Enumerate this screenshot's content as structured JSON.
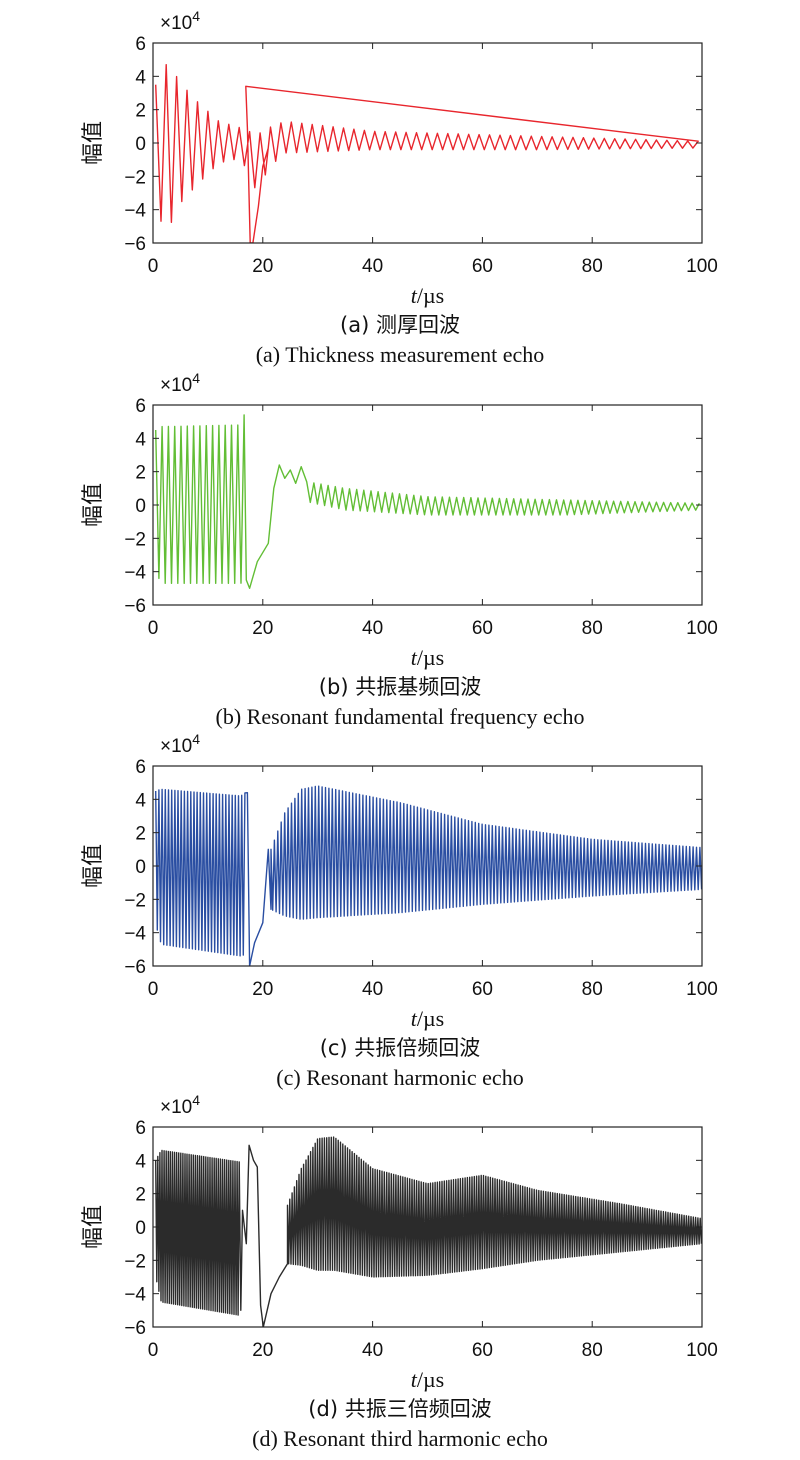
{
  "chart_data": [
    {
      "type": "line",
      "xlabel_italic": "t",
      "xlabel_unit": "/µs",
      "ylabel": "幅值",
      "multiplier": "×10",
      "multiplier_exp": "4",
      "xlim": [
        0,
        100
      ],
      "ylim": [
        -6,
        6
      ],
      "xticks": [
        "0",
        "20",
        "40",
        "60",
        "80",
        "100"
      ],
      "yticks": [
        "6",
        "4",
        "2",
        "0",
        "−2",
        "−4",
        "−6"
      ],
      "caption_zh": "(a) 测厚回波",
      "caption_en": "(a) Thickness measurement echo",
      "color": "#e8262d",
      "series": [
        {
          "envelope": [
            {
              "x": 0.5,
              "lo": -3.5,
              "hi": 3.5
            },
            {
              "x": 1.0,
              "lo": -4.6,
              "hi": 4.7
            },
            {
              "x": 3.0,
              "lo": -5.0,
              "hi": 4.7
            },
            {
              "x": 5.0,
              "lo": -3.6,
              "hi": 3.6
            },
            {
              "x": 8.0,
              "lo": -2.5,
              "hi": 2.5
            },
            {
              "x": 12.0,
              "lo": -1.2,
              "hi": 1.3
            },
            {
              "x": 16.0,
              "lo": -0.9,
              "hi": 0.9
            },
            {
              "x": 19.0,
              "lo": -3.0,
              "hi": 0.5
            },
            {
              "x": 21.0,
              "lo": -1.5,
              "hi": 0.9
            },
            {
              "x": 24.0,
              "lo": -0.6,
              "hi": 1.3
            },
            {
              "x": 40.0,
              "lo": -0.4,
              "hi": 0.7
            },
            {
              "x": 70.0,
              "lo": -0.4,
              "hi": 0.4
            },
            {
              "x": 100.0,
              "lo": -0.3,
              "hi": 0.1
            }
          ],
          "period": 1.9,
          "spikes": [
            {
              "x": 16.9,
              "y": 3.4
            },
            {
              "x": 17.2,
              "y": 0.9
            },
            {
              "x": 17.7,
              "y": -6.0
            },
            {
              "x": 18.2,
              "y": -6.0
            },
            {
              "x": 19.2,
              "y": -3.8
            },
            {
              "x": 20.0,
              "y": -1.4
            },
            {
              "x": 21.0,
              "y": -0.3
            }
          ]
        }
      ]
    },
    {
      "type": "line",
      "xlabel_italic": "t",
      "xlabel_unit": "/µs",
      "ylabel": "幅值",
      "multiplier": "×10",
      "multiplier_exp": "4",
      "xlim": [
        0,
        100
      ],
      "ylim": [
        -6,
        6
      ],
      "xticks": [
        "0",
        "20",
        "40",
        "60",
        "80",
        "100"
      ],
      "yticks": [
        "6",
        "4",
        "2",
        "0",
        "−2",
        "−4",
        "−6"
      ],
      "caption_zh": "(b) 共振基频回波",
      "caption_en": "(b) Resonant fundamental frequency echo",
      "color": "#62be35",
      "series": [
        {
          "envelope": [
            {
              "x": 0.5,
              "lo": -4.0,
              "hi": 4.5
            },
            {
              "x": 1.5,
              "lo": -4.7,
              "hi": 4.7
            },
            {
              "x": 16.0,
              "lo": -4.7,
              "hi": 4.8
            },
            {
              "x": 16.8,
              "lo": -4.5,
              "hi": 5.6
            }
          ],
          "period": 1.15,
          "spikes": [
            {
              "x": 17.0,
              "y": -4.5
            },
            {
              "x": 17.6,
              "y": -5.0
            },
            {
              "x": 19.0,
              "y": -3.4
            },
            {
              "x": 21.0,
              "y": -2.3
            },
            {
              "x": 22.0,
              "y": 1.0
            },
            {
              "x": 23.0,
              "y": 2.4
            },
            {
              "x": 24.0,
              "y": 1.6
            },
            {
              "x": 25.0,
              "y": 2.1
            },
            {
              "x": 26.0,
              "y": 1.3
            },
            {
              "x": 27.0,
              "y": 2.3
            },
            {
              "x": 28.0,
              "y": 1.4
            }
          ],
          "tail": {
            "envelope": [
              {
                "x": 28.0,
                "lo": 0.2,
                "hi": 1.4
              },
              {
                "x": 35.0,
                "lo": -0.3,
                "hi": 1.0
              },
              {
                "x": 50.0,
                "lo": -0.6,
                "hi": 0.5
              },
              {
                "x": 75.0,
                "lo": -0.6,
                "hi": 0.3
              },
              {
                "x": 100.0,
                "lo": -0.3,
                "hi": 0.1
              }
            ],
            "period": 1.3
          }
        }
      ]
    },
    {
      "type": "line",
      "xlabel_italic": "t",
      "xlabel_unit": "/µs",
      "ylabel": "幅值",
      "multiplier": "×10",
      "multiplier_exp": "4",
      "xlim": [
        0,
        100
      ],
      "ylim": [
        -6,
        6
      ],
      "xticks": [
        "0",
        "20",
        "40",
        "60",
        "80",
        "100"
      ],
      "yticks": [
        "6",
        "4",
        "2",
        "0",
        "−2",
        "−4",
        "−6"
      ],
      "caption_zh": "(c) 共振倍频回波",
      "caption_en": "(c) Resonant harmonic echo",
      "color": "#2a4ea2",
      "series": [
        {
          "envelope": [
            {
              "x": 0.5,
              "lo": -3.5,
              "hi": 4.5
            },
            {
              "x": 1.5,
              "lo": -4.7,
              "hi": 4.6
            },
            {
              "x": 16.0,
              "lo": -5.4,
              "hi": 4.2
            },
            {
              "x": 16.8,
              "lo": -5.3,
              "hi": 4.4
            }
          ],
          "period": 0.58,
          "spikes": [
            {
              "x": 17.2,
              "y": 4.4
            },
            {
              "x": 17.6,
              "y": -6.0
            },
            {
              "x": 18.5,
              "y": -4.6
            },
            {
              "x": 20.0,
              "y": -3.4
            },
            {
              "x": 21.0,
              "y": 1.0
            },
            {
              "x": 21.5,
              "y": -2.6
            }
          ],
          "tail": {
            "envelope": [
              {
                "x": 21.5,
                "lo": -2.6,
                "hi": 1.0
              },
              {
                "x": 24.0,
                "lo": -3.0,
                "hi": 3.2
              },
              {
                "x": 27.0,
                "lo": -3.2,
                "hi": 4.6
              },
              {
                "x": 30.0,
                "lo": -3.1,
                "hi": 4.8
              },
              {
                "x": 45.0,
                "lo": -2.8,
                "hi": 3.8
              },
              {
                "x": 60.0,
                "lo": -2.3,
                "hi": 2.5
              },
              {
                "x": 80.0,
                "lo": -1.8,
                "hi": 1.6
              },
              {
                "x": 100.0,
                "lo": -1.4,
                "hi": 1.1
              }
            ],
            "period": 0.62
          }
        }
      ]
    },
    {
      "type": "line",
      "xlabel_italic": "t",
      "xlabel_unit": "/µs",
      "ylabel": "幅值",
      "multiplier": "×10",
      "multiplier_exp": "4",
      "xlim": [
        0,
        100
      ],
      "ylim": [
        -6,
        6
      ],
      "xticks": [
        "0",
        "20",
        "40",
        "60",
        "80",
        "100"
      ],
      "yticks": [
        "6",
        "4",
        "2",
        "0",
        "−2",
        "−4",
        "−6"
      ],
      "caption_zh": "(d) 共振三倍频回波",
      "caption_en": "(d) Resonant third harmonic echo",
      "color": "#2b2b2b",
      "series": [
        {
          "envelope": [
            {
              "x": 0.5,
              "lo": -3.0,
              "hi": 4.0
            },
            {
              "x": 1.5,
              "lo": -4.5,
              "hi": 4.6
            },
            {
              "x": 15.8,
              "lo": -5.3,
              "hi": 3.9
            }
          ],
          "period": 0.38,
          "spikes": [
            {
              "x": 16.0,
              "y": -5.0
            },
            {
              "x": 16.3,
              "y": 1.0
            },
            {
              "x": 17.0,
              "y": -1.0
            },
            {
              "x": 17.5,
              "y": 4.9
            },
            {
              "x": 18.3,
              "y": 4.0
            },
            {
              "x": 19.0,
              "y": 3.6
            },
            {
              "x": 19.6,
              "y": -4.7
            },
            {
              "x": 20.1,
              "y": -6.0
            },
            {
              "x": 21.5,
              "y": -4.0
            },
            {
              "x": 23.0,
              "y": -3.0
            },
            {
              "x": 24.5,
              "y": -2.2
            }
          ],
          "tail": {
            "envelope": [
              {
                "x": 24.5,
                "lo": -2.2,
                "hi": 1.3
              },
              {
                "x": 27.0,
                "lo": -2.3,
                "hi": 3.5
              },
              {
                "x": 30.0,
                "lo": -2.6,
                "hi": 5.3
              },
              {
                "x": 33.0,
                "lo": -2.6,
                "hi": 5.4
              },
              {
                "x": 40.0,
                "lo": -3.0,
                "hi": 3.5
              },
              {
                "x": 50.0,
                "lo": -2.9,
                "hi": 2.6
              },
              {
                "x": 60.0,
                "lo": -2.5,
                "hi": 3.1
              },
              {
                "x": 70.0,
                "lo": -2.0,
                "hi": 2.2
              },
              {
                "x": 85.0,
                "lo": -1.5,
                "hi": 1.4
              },
              {
                "x": 100.0,
                "lo": -1.0,
                "hi": 0.5
              }
            ],
            "period": 0.42
          }
        }
      ]
    }
  ]
}
